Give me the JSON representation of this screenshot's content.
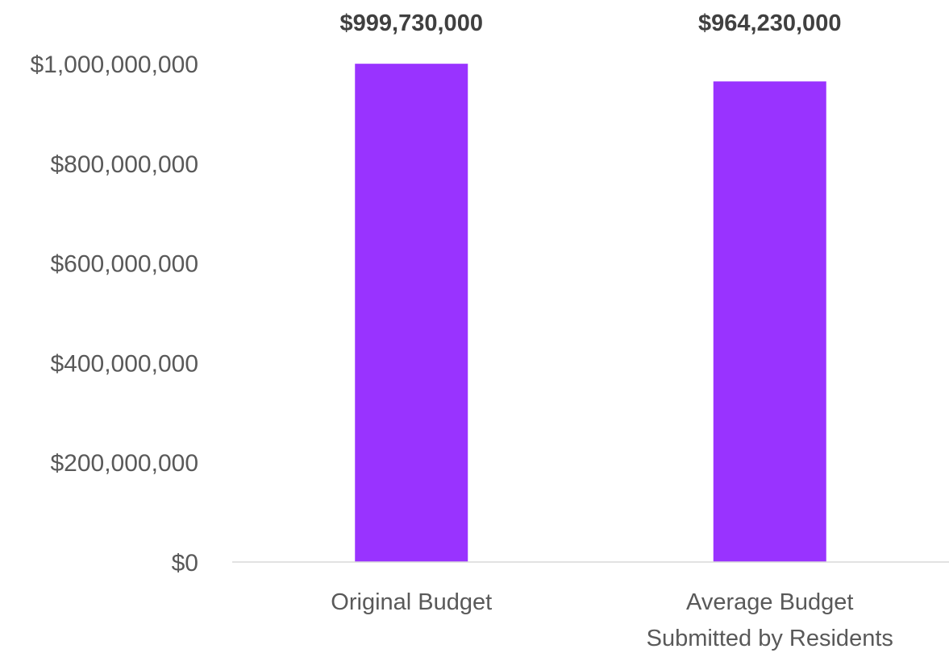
{
  "chart_data": {
    "type": "bar",
    "title": "",
    "xlabel": "",
    "ylabel": "",
    "categories": [
      [
        "Original Budget"
      ],
      [
        "Average Budget",
        "Submitted by Residents"
      ]
    ],
    "values": [
      999730000,
      964230000
    ],
    "data_labels": [
      "$999,730,000",
      "$964,230,000"
    ],
    "ylim": [
      0,
      1000000000
    ],
    "y_ticks": [
      0,
      200000000,
      400000000,
      600000000,
      800000000,
      1000000000
    ],
    "y_tick_labels": [
      "$0",
      "$200,000,000",
      "$400,000,000",
      "$600,000,000",
      "$800,000,000",
      "$1,000,000,000"
    ],
    "grid": false,
    "legend": "none",
    "colors": {
      "bar": "#9933ff",
      "axis": "#d9d9d9",
      "tick_text": "#595959",
      "data_label_text": "#404040"
    }
  }
}
